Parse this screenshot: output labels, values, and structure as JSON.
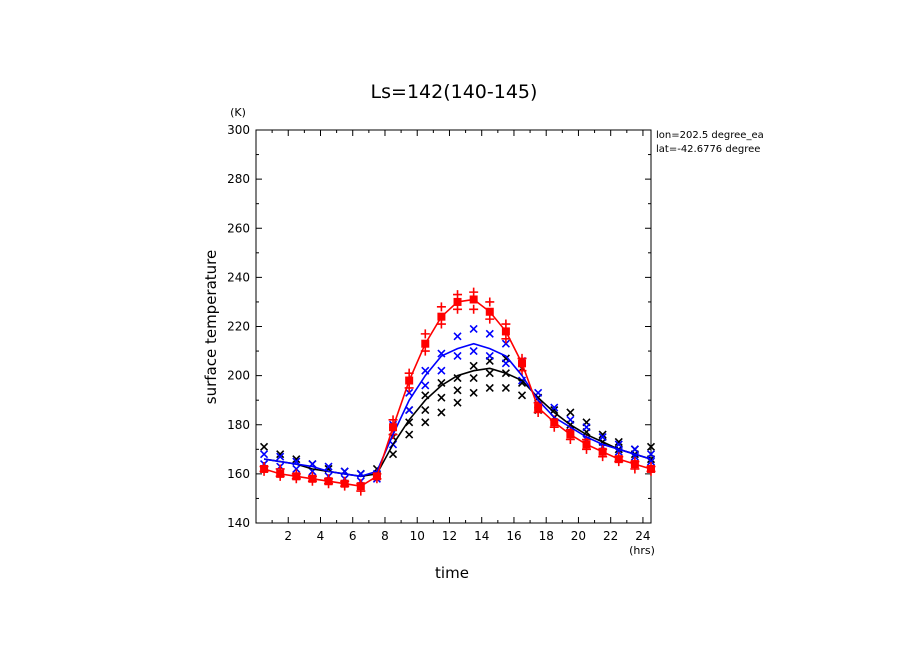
{
  "chart_data": {
    "type": "line",
    "title": "Ls=142(140-145)",
    "xlabel": "time",
    "ylabel": "surface temperature",
    "x_unit": "(hrs)",
    "y_unit": "(K)",
    "xlim": [
      0,
      24.5
    ],
    "ylim": [
      140,
      300
    ],
    "x_ticks": [
      2,
      4,
      6,
      8,
      10,
      12,
      14,
      16,
      18,
      20,
      22,
      24
    ],
    "y_ticks": [
      140,
      160,
      180,
      200,
      220,
      240,
      260,
      280,
      300
    ],
    "annotations": [
      "lon=202.5 degree_ea",
      "lat=-42.6776 degree"
    ],
    "x": [
      0.5,
      1.5,
      2.5,
      3.5,
      4.5,
      5.5,
      6.5,
      7.5,
      8.5,
      9.5,
      10.5,
      11.5,
      12.5,
      13.5,
      14.5,
      15.5,
      16.5,
      17.5,
      18.5,
      19.5,
      20.5,
      21.5,
      22.5,
      23.5,
      24.5
    ],
    "series": [
      {
        "color": "#ff0000",
        "line": [
          162,
          160,
          159,
          158,
          157,
          156,
          155,
          159,
          179,
          198,
          213,
          224,
          230,
          231,
          226,
          218,
          205,
          187,
          181,
          176,
          172,
          169,
          166,
          164,
          162
        ],
        "scatter_marker": "plus",
        "scatter": [
          [
            0.5,
            163
          ],
          [
            0.5,
            161
          ],
          [
            1.5,
            162
          ],
          [
            1.5,
            159
          ],
          [
            2.5,
            160
          ],
          [
            2.5,
            158
          ],
          [
            3.5,
            159
          ],
          [
            3.5,
            157
          ],
          [
            4.5,
            158
          ],
          [
            4.5,
            156
          ],
          [
            5.5,
            157
          ],
          [
            5.5,
            155
          ],
          [
            6.5,
            156
          ],
          [
            6.5,
            153
          ],
          [
            7.5,
            160
          ],
          [
            7.5,
            158
          ],
          [
            8.5,
            182
          ],
          [
            8.5,
            176
          ],
          [
            9.5,
            201
          ],
          [
            9.5,
            195
          ],
          [
            10.5,
            217
          ],
          [
            10.5,
            210
          ],
          [
            11.5,
            228
          ],
          [
            11.5,
            221
          ],
          [
            12.5,
            233
          ],
          [
            12.5,
            227
          ],
          [
            13.5,
            234
          ],
          [
            13.5,
            227
          ],
          [
            14.5,
            230
          ],
          [
            14.5,
            223
          ],
          [
            15.5,
            221
          ],
          [
            15.5,
            215
          ],
          [
            16.5,
            207
          ],
          [
            16.5,
            202
          ],
          [
            17.5,
            189
          ],
          [
            17.5,
            185
          ],
          [
            18.5,
            182
          ],
          [
            18.5,
            179
          ],
          [
            19.5,
            178
          ],
          [
            19.5,
            174
          ],
          [
            20.5,
            174
          ],
          [
            20.5,
            170
          ],
          [
            21.5,
            170
          ],
          [
            21.5,
            167
          ],
          [
            22.5,
            167
          ],
          [
            22.5,
            165
          ],
          [
            23.5,
            165
          ],
          [
            23.5,
            162
          ],
          [
            24.5,
            163
          ],
          [
            24.5,
            161
          ]
        ]
      },
      {
        "color": "#0000ff",
        "line": [
          166,
          165,
          164,
          163,
          161,
          160,
          159,
          161,
          176,
          190,
          200,
          208,
          211,
          213,
          211,
          208,
          200,
          190,
          183,
          179,
          175,
          172,
          170,
          168,
          166
        ],
        "scatter_marker": "x",
        "scatter": [
          [
            0.5,
            168
          ],
          [
            0.5,
            164
          ],
          [
            1.5,
            167
          ],
          [
            1.5,
            163
          ],
          [
            2.5,
            165
          ],
          [
            2.5,
            162
          ],
          [
            3.5,
            164
          ],
          [
            3.5,
            161
          ],
          [
            4.5,
            163
          ],
          [
            4.5,
            159
          ],
          [
            5.5,
            161
          ],
          [
            5.5,
            158
          ],
          [
            6.5,
            160
          ],
          [
            6.5,
            157
          ],
          [
            7.5,
            160
          ],
          [
            7.5,
            158
          ],
          [
            8.5,
            180
          ],
          [
            8.5,
            172
          ],
          [
            9.5,
            193
          ],
          [
            9.5,
            186
          ],
          [
            10.5,
            202
          ],
          [
            10.5,
            196
          ],
          [
            11.5,
            209
          ],
          [
            11.5,
            202
          ],
          [
            12.5,
            216
          ],
          [
            12.5,
            208
          ],
          [
            13.5,
            219
          ],
          [
            13.5,
            210
          ],
          [
            14.5,
            217
          ],
          [
            14.5,
            208
          ],
          [
            15.5,
            213
          ],
          [
            15.5,
            205
          ],
          [
            16.5,
            206
          ],
          [
            16.5,
            198
          ],
          [
            17.5,
            193
          ],
          [
            17.5,
            188
          ],
          [
            18.5,
            187
          ],
          [
            18.5,
            181
          ],
          [
            19.5,
            182
          ],
          [
            19.5,
            177
          ],
          [
            20.5,
            179
          ],
          [
            20.5,
            174
          ],
          [
            21.5,
            175
          ],
          [
            21.5,
            171
          ],
          [
            22.5,
            172
          ],
          [
            22.5,
            169
          ],
          [
            23.5,
            170
          ],
          [
            23.5,
            167
          ],
          [
            24.5,
            168
          ],
          [
            24.5,
            165
          ]
        ]
      },
      {
        "color": "#000000",
        "line": [
          166,
          165,
          164,
          162,
          161,
          160,
          159,
          160,
          172,
          182,
          190,
          196,
          200,
          202,
          203,
          201,
          198,
          191,
          185,
          180,
          176,
          173,
          170,
          168,
          166
        ],
        "scatter_marker": "x",
        "scatter": [
          [
            0.5,
            171
          ],
          [
            1.5,
            168
          ],
          [
            2.5,
            166
          ],
          [
            3.5,
            164
          ],
          [
            4.5,
            162
          ],
          [
            5.5,
            161
          ],
          [
            6.5,
            160
          ],
          [
            7.5,
            162
          ],
          [
            8.5,
            168
          ],
          [
            8.5,
            175
          ],
          [
            9.5,
            176
          ],
          [
            9.5,
            181
          ],
          [
            9.5,
            186
          ],
          [
            10.5,
            181
          ],
          [
            10.5,
            186
          ],
          [
            10.5,
            192
          ],
          [
            11.5,
            185
          ],
          [
            11.5,
            191
          ],
          [
            11.5,
            197
          ],
          [
            12.5,
            189
          ],
          [
            12.5,
            194
          ],
          [
            12.5,
            199
          ],
          [
            13.5,
            193
          ],
          [
            13.5,
            199
          ],
          [
            13.5,
            204
          ],
          [
            14.5,
            195
          ],
          [
            14.5,
            201
          ],
          [
            14.5,
            206
          ],
          [
            15.5,
            195
          ],
          [
            15.5,
            201
          ],
          [
            15.5,
            207
          ],
          [
            16.5,
            192
          ],
          [
            16.5,
            197
          ],
          [
            16.5,
            203
          ],
          [
            17.5,
            186
          ],
          [
            17.5,
            191
          ],
          [
            18.5,
            183
          ],
          [
            18.5,
            186
          ],
          [
            19.5,
            180
          ],
          [
            19.5,
            185
          ],
          [
            20.5,
            177
          ],
          [
            20.5,
            181
          ],
          [
            21.5,
            173
          ],
          [
            21.5,
            176
          ],
          [
            22.5,
            170
          ],
          [
            22.5,
            173
          ],
          [
            23.5,
            168
          ],
          [
            23.5,
            170
          ],
          [
            24.5,
            166
          ],
          [
            24.5,
            171
          ]
        ]
      }
    ]
  }
}
